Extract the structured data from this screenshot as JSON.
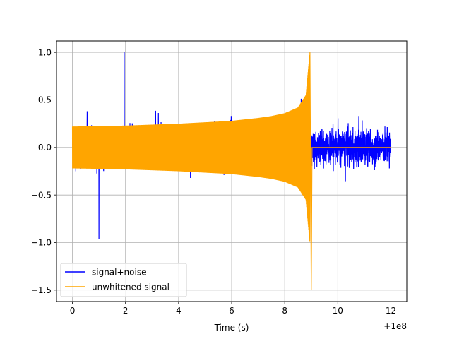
{
  "chart_data": {
    "type": "line",
    "title": "",
    "xlabel": "Time (s)",
    "ylabel": "",
    "x_offset_label": "+1e8",
    "xlim": [
      -0.6,
      12.6
    ],
    "ylim": [
      -1.62,
      1.12
    ],
    "x_ticks": [
      {
        "value": 0,
        "label": "0"
      },
      {
        "value": 2,
        "label": "2"
      },
      {
        "value": 4,
        "label": "4"
      },
      {
        "value": 6,
        "label": "6"
      },
      {
        "value": 8,
        "label": "8"
      },
      {
        "value": 10,
        "label": "10"
      },
      {
        "value": 12,
        "label": "12"
      }
    ],
    "y_ticks": [
      {
        "value": 1.0,
        "label": "1.0"
      },
      {
        "value": 0.5,
        "label": "0.5"
      },
      {
        "value": 0.0,
        "label": "0.0"
      },
      {
        "value": -0.5,
        "label": "−0.5"
      },
      {
        "value": -1.0,
        "label": "−1.0"
      },
      {
        "value": -1.5,
        "label": "−1.5"
      }
    ],
    "grid": true,
    "legend_position": "lower-left",
    "series": [
      {
        "name": "signal+noise",
        "color": "#0000ff",
        "description_points": {
          "x_start": 0.0,
          "x_end": 12.0,
          "typical_amplitude": 0.35,
          "max": 1.0,
          "max_at": 1.95,
          "min": -0.96,
          "min_at": 1.0
        }
      },
      {
        "name": "unwhitened signal",
        "color": "#ffa500",
        "envelope_x": [
          0.0,
          1.0,
          2.0,
          3.0,
          4.0,
          5.0,
          6.0,
          7.0,
          7.5,
          8.0,
          8.5,
          8.8,
          8.95
        ],
        "envelope_y": [
          0.22,
          0.225,
          0.23,
          0.24,
          0.25,
          0.265,
          0.28,
          0.31,
          0.33,
          0.36,
          0.42,
          0.55,
          1.0
        ],
        "min_value": -1.5,
        "min_at": 9.0,
        "after_x": 9.0,
        "after_value": 0.0,
        "x_end": 12.0
      }
    ]
  }
}
